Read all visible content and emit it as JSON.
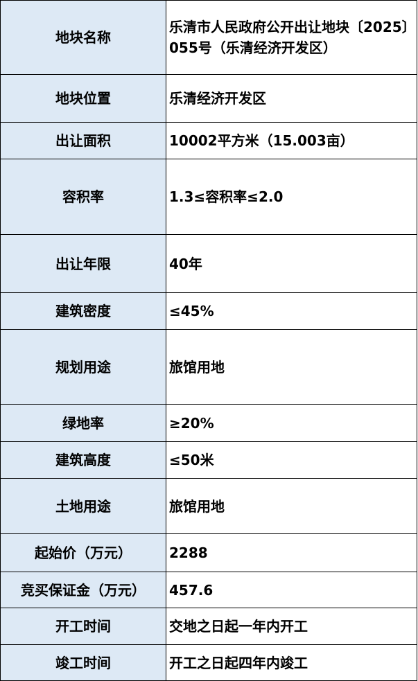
{
  "rows": [
    {
      "label": "地块名称",
      "value": "乐清市人民政府公开出让地块〔2025〕055号（乐清经济开发区）"
    },
    {
      "label": "地块位置",
      "value": "乐清经济开发区"
    },
    {
      "label": "出让面积",
      "value": "10002平方米（15.003亩）"
    },
    {
      "label": "容积率",
      "value": "1.3≤容积率≤2.0"
    },
    {
      "label": "出让年限",
      "value": "40年"
    },
    {
      "label": "建筑密度",
      "value": "≤45%"
    },
    {
      "label": "规划用途",
      "value": "旅馆用地"
    },
    {
      "label": "绿地率",
      "value": "≥20%"
    },
    {
      "label": "建筑高度",
      "value": "≤50米"
    },
    {
      "label": "土地用途",
      "value": "旅馆用地"
    },
    {
      "label": "起始价（万元）",
      "value": "2288"
    },
    {
      "label": "竞买保证金（万元）",
      "value": "457.6"
    },
    {
      "label": "开工时间",
      "value": "交地之日起一年内开工"
    },
    {
      "label": "竣工时间",
      "value": "开工之日起四年内竣工"
    }
  ]
}
